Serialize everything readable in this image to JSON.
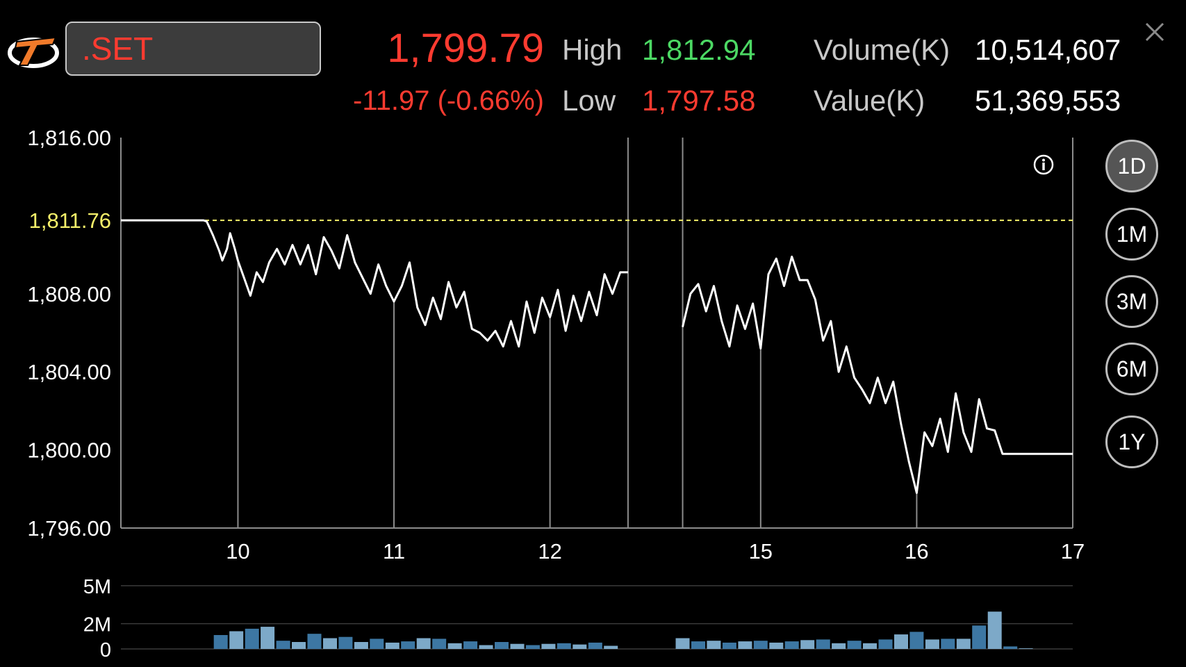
{
  "header": {
    "symbol": ".SET",
    "price": "1,799.79",
    "change": "-11.97 (-0.66%)",
    "high_label": "High",
    "high_value": "1,812.94",
    "low_label": "Low",
    "low_value": "1,797.58",
    "volume_label": "Volume(K)",
    "volume_value": "10,514,607",
    "value_label": "Value(K)",
    "value_value": "51,369,553"
  },
  "periods": [
    {
      "label": "1D",
      "active": true
    },
    {
      "label": "1M",
      "active": false
    },
    {
      "label": "3M",
      "active": false
    },
    {
      "label": "6M",
      "active": false
    },
    {
      "label": "1Y",
      "active": false
    }
  ],
  "colors": {
    "down": "#ff3b30",
    "up": "#4cd964",
    "prev_close": "#f5f06a",
    "line": "#ffffff",
    "volume_light": "#7da9c8",
    "volume_dark": "#3d77a3"
  },
  "icons": {
    "close": "close-icon",
    "info": "info-icon",
    "logo": "broker-logo-icon"
  },
  "chart_data": [
    {
      "type": "line",
      "y_ticks": [
        "1,816.00",
        "1,808.00",
        "1,804.00",
        "1,800.00",
        "1,796.00"
      ],
      "y_tick_values": [
        1816,
        1808,
        1804,
        1800,
        1796
      ],
      "ylim": [
        1796,
        1816
      ],
      "x_ticks": [
        "10",
        "11",
        "12",
        "15",
        "16",
        "17"
      ],
      "x_tick_positions": [
        10,
        11,
        12,
        13.35,
        14.35,
        15.35
      ],
      "xlim": [
        9.25,
        15.35
      ],
      "session_dividers": [
        12.5,
        12.85
      ],
      "prev_close": {
        "value": 1811.76,
        "label": "1,811.76"
      },
      "grid": false,
      "segments": [
        {
          "name": "morning",
          "x": [
            9.25,
            9.35,
            9.45,
            9.55,
            9.65,
            9.7,
            9.74,
            9.78,
            9.8,
            9.84,
            9.88,
            9.9,
            9.93,
            9.95,
            9.98,
            10.0,
            10.04,
            10.08,
            10.12,
            10.16,
            10.2,
            10.25,
            10.3,
            10.35,
            10.4,
            10.45,
            10.5,
            10.55,
            10.6,
            10.65,
            10.7,
            10.75,
            10.8,
            10.85,
            10.9,
            10.95,
            11.0,
            11.05,
            11.1,
            11.15,
            11.2,
            11.25,
            11.3,
            11.35,
            11.4,
            11.45,
            11.5,
            11.55,
            11.6,
            11.65,
            11.7,
            11.75,
            11.8,
            11.85,
            11.9,
            11.95,
            12.0,
            12.05,
            12.1,
            12.15,
            12.2,
            12.25,
            12.3,
            12.35,
            12.4,
            12.45,
            12.5
          ],
          "values": [
            1811.76,
            1811.76,
            1811.76,
            1811.76,
            1811.76,
            1811.76,
            1811.76,
            1811.76,
            1811.7,
            1811.0,
            1810.2,
            1809.7,
            1810.3,
            1811.1,
            1810.3,
            1809.7,
            1808.8,
            1807.9,
            1809.1,
            1808.6,
            1809.6,
            1810.3,
            1809.5,
            1810.5,
            1809.5,
            1810.5,
            1809.0,
            1810.9,
            1810.2,
            1809.3,
            1811.0,
            1809.6,
            1808.8,
            1808.0,
            1809.5,
            1808.4,
            1807.6,
            1808.4,
            1809.6,
            1807.3,
            1806.4,
            1807.8,
            1806.7,
            1808.6,
            1807.3,
            1808.1,
            1806.2,
            1806.0,
            1805.6,
            1806.1,
            1805.3,
            1806.6,
            1805.3,
            1807.6,
            1806.0,
            1807.8,
            1806.8,
            1808.2,
            1806.1,
            1807.9,
            1806.6,
            1808.1,
            1806.9,
            1809.0,
            1808.0,
            1809.1,
            1809.1
          ]
        },
        {
          "name": "afternoon",
          "x": [
            12.85,
            12.9,
            12.95,
            13.0,
            13.05,
            13.1,
            13.15,
            13.2,
            13.25,
            13.3,
            13.35,
            13.4,
            13.45,
            13.5,
            13.55,
            13.6,
            13.65,
            13.7,
            13.75,
            13.8,
            13.85,
            13.9,
            13.95,
            14.0,
            14.05,
            14.1,
            14.15,
            14.2,
            14.25,
            14.3,
            14.35,
            14.4,
            14.45,
            14.5,
            14.55,
            14.6,
            14.65,
            14.7,
            14.75,
            14.8,
            14.85,
            14.9,
            14.95,
            15.0,
            15.05,
            15.1,
            15.2,
            15.3,
            15.35
          ],
          "values": [
            1806.3,
            1808.0,
            1808.5,
            1807.1,
            1808.4,
            1806.6,
            1805.3,
            1807.4,
            1806.2,
            1807.5,
            1805.2,
            1809.0,
            1809.8,
            1808.4,
            1809.9,
            1808.7,
            1808.7,
            1807.7,
            1805.6,
            1806.6,
            1804.0,
            1805.3,
            1803.7,
            1803.1,
            1802.4,
            1803.7,
            1802.4,
            1803.5,
            1801.3,
            1799.4,
            1797.8,
            1800.9,
            1800.2,
            1801.6,
            1799.9,
            1802.9,
            1800.9,
            1799.9,
            1802.6,
            1801.1,
            1801.0,
            1799.8,
            1799.8,
            1799.8,
            1799.8,
            1799.8,
            1799.8,
            1799.8,
            1799.8
          ]
        }
      ]
    },
    {
      "type": "bar",
      "y_ticks": [
        "5M",
        "2M",
        "0"
      ],
      "y_tick_values": [
        5,
        2,
        0
      ],
      "ylim": [
        0,
        5
      ],
      "unit": "M",
      "grid": true,
      "x": [
        9.89,
        9.99,
        10.09,
        10.19,
        10.29,
        10.39,
        10.49,
        10.59,
        10.69,
        10.79,
        10.89,
        10.99,
        11.09,
        11.19,
        11.29,
        11.39,
        11.49,
        11.59,
        11.69,
        11.79,
        11.89,
        11.99,
        12.09,
        12.19,
        12.29,
        12.39,
        12.85,
        12.95,
        13.05,
        13.15,
        13.25,
        13.35,
        13.45,
        13.55,
        13.65,
        13.75,
        13.85,
        13.95,
        14.05,
        14.15,
        14.25,
        14.35,
        14.45,
        14.55,
        14.65,
        14.75,
        14.85,
        14.95,
        15.05
      ],
      "values": [
        1.1,
        1.4,
        1.6,
        1.75,
        0.65,
        0.55,
        1.2,
        0.85,
        0.95,
        0.55,
        0.8,
        0.5,
        0.6,
        0.85,
        0.8,
        0.45,
        0.6,
        0.3,
        0.55,
        0.4,
        0.3,
        0.4,
        0.45,
        0.35,
        0.5,
        0.25,
        0.85,
        0.6,
        0.65,
        0.5,
        0.6,
        0.65,
        0.5,
        0.6,
        0.7,
        0.75,
        0.45,
        0.65,
        0.45,
        0.75,
        1.15,
        1.35,
        0.75,
        0.8,
        0.8,
        1.85,
        2.95,
        0.2,
        0.05
      ],
      "shades": [
        1,
        0,
        1,
        0,
        1,
        0,
        1,
        0,
        1,
        0,
        1,
        0,
        1,
        0,
        1,
        0,
        1,
        0,
        1,
        0,
        1,
        0,
        1,
        0,
        1,
        0,
        0,
        1,
        0,
        1,
        0,
        1,
        0,
        1,
        0,
        1,
        0,
        1,
        0,
        1,
        0,
        1,
        0,
        1,
        0,
        1,
        0,
        1,
        0
      ]
    }
  ]
}
